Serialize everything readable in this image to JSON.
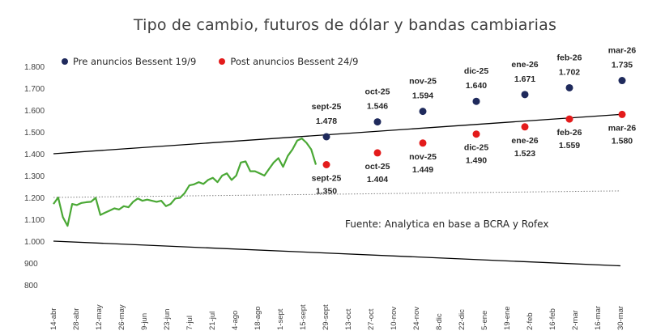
{
  "chart_data": {
    "type": "line",
    "title": "Tipo de cambio, futuros de dólar y bandas cambiarias",
    "source": "Fuente: Analytica en base a BCRA y Rofex",
    "ylim": [
      800,
      1800
    ],
    "yticks": [
      "1.800",
      "1.700",
      "1.600",
      "1.500",
      "1.400",
      "1.300",
      "1.200",
      "1.100",
      "1.000",
      "900",
      "800"
    ],
    "x_ticks": [
      "14-abr",
      "28-abr",
      "12-may",
      "26-may",
      "9-jun",
      "23-jun",
      "7-jul",
      "21-jul",
      "4-ago",
      "18-ago",
      "1-sept",
      "15-sept",
      "29-sept",
      "13-oct",
      "27-oct",
      "10-nov",
      "24-nov",
      "8-dic",
      "22-dic",
      "5-ene",
      "19-ene",
      "2-feb",
      "16-feb",
      "2-mar",
      "16-mar",
      "30-mar"
    ],
    "bands": {
      "upper": {
        "start": 1400,
        "end": 1580
      },
      "lower": {
        "start": 1000,
        "end": 887
      },
      "midline": {
        "start": 1200,
        "end": 1230
      }
    },
    "exchange_rate": [
      1170,
      1200,
      1110,
      1070,
      1170,
      1165,
      1175,
      1178,
      1180,
      1198,
      1120,
      1130,
      1140,
      1150,
      1145,
      1160,
      1155,
      1180,
      1195,
      1185,
      1190,
      1185,
      1180,
      1185,
      1160,
      1170,
      1195,
      1198,
      1220,
      1255,
      1260,
      1270,
      1262,
      1280,
      1290,
      1270,
      1300,
      1310,
      1280,
      1300,
      1360,
      1365,
      1320,
      1320,
      1310,
      1300,
      1330,
      1360,
      1380,
      1340,
      1390,
      1420,
      1460,
      1470,
      1450,
      1420,
      1350
    ],
    "series": [
      {
        "name": "Pre anuncios Bessent 19/9",
        "color": "#1f2a5c",
        "points": [
          {
            "label": "sept-25",
            "value": 1478,
            "value_text": "1.478"
          },
          {
            "label": "oct-25",
            "value": 1546,
            "value_text": "1.546"
          },
          {
            "label": "nov-25",
            "value": 1594,
            "value_text": "1.594"
          },
          {
            "label": "dic-25",
            "value": 1640,
            "value_text": "1.640"
          },
          {
            "label": "ene-26",
            "value": 1671,
            "value_text": "1.671"
          },
          {
            "label": "feb-26",
            "value": 1702,
            "value_text": "1.702"
          },
          {
            "label": "mar-26",
            "value": 1735,
            "value_text": "1.735"
          }
        ]
      },
      {
        "name": "Post anuncios Bessent 24/9",
        "color": "#e31b1b",
        "points": [
          {
            "label": "sept-25",
            "value": 1350,
            "value_text": "1.350"
          },
          {
            "label": "oct-25",
            "value": 1404,
            "value_text": "1.404"
          },
          {
            "label": "nov-25",
            "value": 1449,
            "value_text": "1.449"
          },
          {
            "label": "dic-25",
            "value": 1490,
            "value_text": "1.490"
          },
          {
            "label": "ene-26",
            "value": 1523,
            "value_text": "1.523"
          },
          {
            "label": "feb-26",
            "value": 1559,
            "value_text": "1.559"
          },
          {
            "label": "mar-26",
            "value": 1580,
            "value_text": "1.580"
          }
        ]
      }
    ]
  }
}
